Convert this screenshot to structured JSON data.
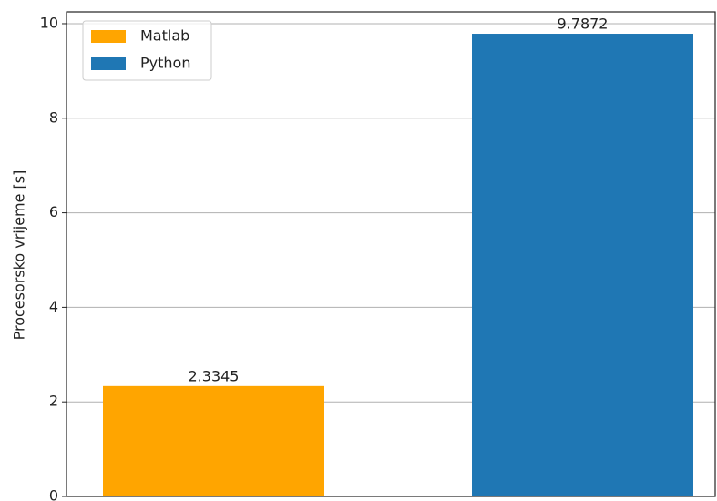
{
  "chart_data": {
    "type": "bar",
    "ylabel": "Procesorsko vrijeme [s]",
    "categories": [
      null,
      null
    ],
    "series": [
      {
        "name": "Matlab",
        "color": "#ffa500",
        "values": [
          2.3345,
          null
        ]
      },
      {
        "name": "Python",
        "color": "#1f77b4",
        "values": [
          null,
          9.7872
        ]
      }
    ],
    "ylim": [
      0,
      10.25
    ],
    "yticks": [
      0,
      2,
      4,
      6,
      8,
      10
    ],
    "grid": true,
    "legend": "upper left"
  }
}
